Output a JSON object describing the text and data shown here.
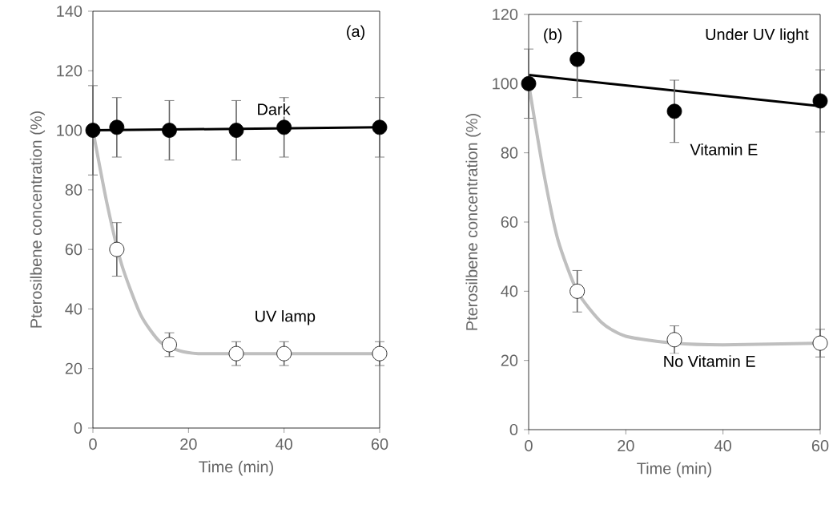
{
  "chart_data": [
    {
      "type": "scatter",
      "title": "(a)",
      "xlabel": "Time (min)",
      "ylabel": "Pterosilbene concentration (%)",
      "xlim": [
        0,
        60
      ],
      "xticks": [
        0,
        20,
        40,
        60
      ],
      "ylim": [
        0,
        140
      ],
      "yticks": [
        0,
        20,
        40,
        60,
        80,
        100,
        120,
        140
      ],
      "grid": false,
      "series": [
        {
          "type": "line",
          "color": "#bfbfbf",
          "marker": "none",
          "x": [
            0,
            3,
            6,
            10,
            14,
            18,
            22,
            30,
            40,
            60
          ],
          "values": [
            100,
            75,
            55,
            38,
            29,
            26,
            25,
            25,
            25,
            25
          ]
        },
        {
          "type": "line",
          "color": "#000000",
          "marker": "none",
          "x": [
            0,
            60
          ],
          "values": [
            100,
            101
          ]
        },
        {
          "name": "UV lamp",
          "color": "#ffffff",
          "marker": "circle",
          "x": [
            5,
            16,
            30,
            40,
            60
          ],
          "values": [
            60,
            28,
            25,
            25,
            25
          ],
          "errors": [
            9,
            4,
            4,
            4,
            4
          ]
        },
        {
          "name": "Dark",
          "color": "#000000",
          "marker": "circle",
          "x": [
            0,
            5,
            16,
            30,
            40,
            60
          ],
          "values": [
            100,
            101,
            100,
            100,
            101,
            101
          ],
          "errors": [
            15,
            10,
            10,
            10,
            10,
            10
          ]
        }
      ]
    },
    {
      "type": "scatter",
      "title": "(b)",
      "xlabel": "Time (min)",
      "ylabel": "Pterosilbene concentration  (%)",
      "xlim": [
        0,
        60
      ],
      "xticks": [
        0,
        20,
        40,
        60
      ],
      "ylim": [
        0,
        120
      ],
      "yticks": [
        0,
        20,
        40,
        60,
        80,
        100,
        120
      ],
      "grid": false,
      "series": [
        {
          "type": "line",
          "color": "#bfbfbf",
          "marker": "none",
          "x": [
            0,
            3,
            6,
            10,
            15,
            20,
            30,
            40,
            60
          ],
          "values": [
            100,
            75,
            55,
            40,
            31,
            27,
            25,
            24.5,
            25
          ]
        },
        {
          "type": "line",
          "color": "#000000",
          "marker": "none",
          "x": [
            0,
            60
          ],
          "values": [
            102.5,
            93.5
          ]
        },
        {
          "name": "No Vitamin E",
          "color": "#ffffff",
          "marker": "circle",
          "x": [
            10,
            30,
            60
          ],
          "values": [
            40,
            26,
            25
          ],
          "errors": [
            6,
            4,
            4
          ]
        },
        {
          "name": "Vitamin E",
          "color": "#000000",
          "marker": "circle",
          "x": [
            0,
            10,
            30,
            60
          ],
          "values": [
            100,
            107,
            92,
            95
          ],
          "errors": [
            10,
            11,
            9,
            9
          ]
        }
      ],
      "annotations": [
        "Under UV light"
      ]
    }
  ]
}
